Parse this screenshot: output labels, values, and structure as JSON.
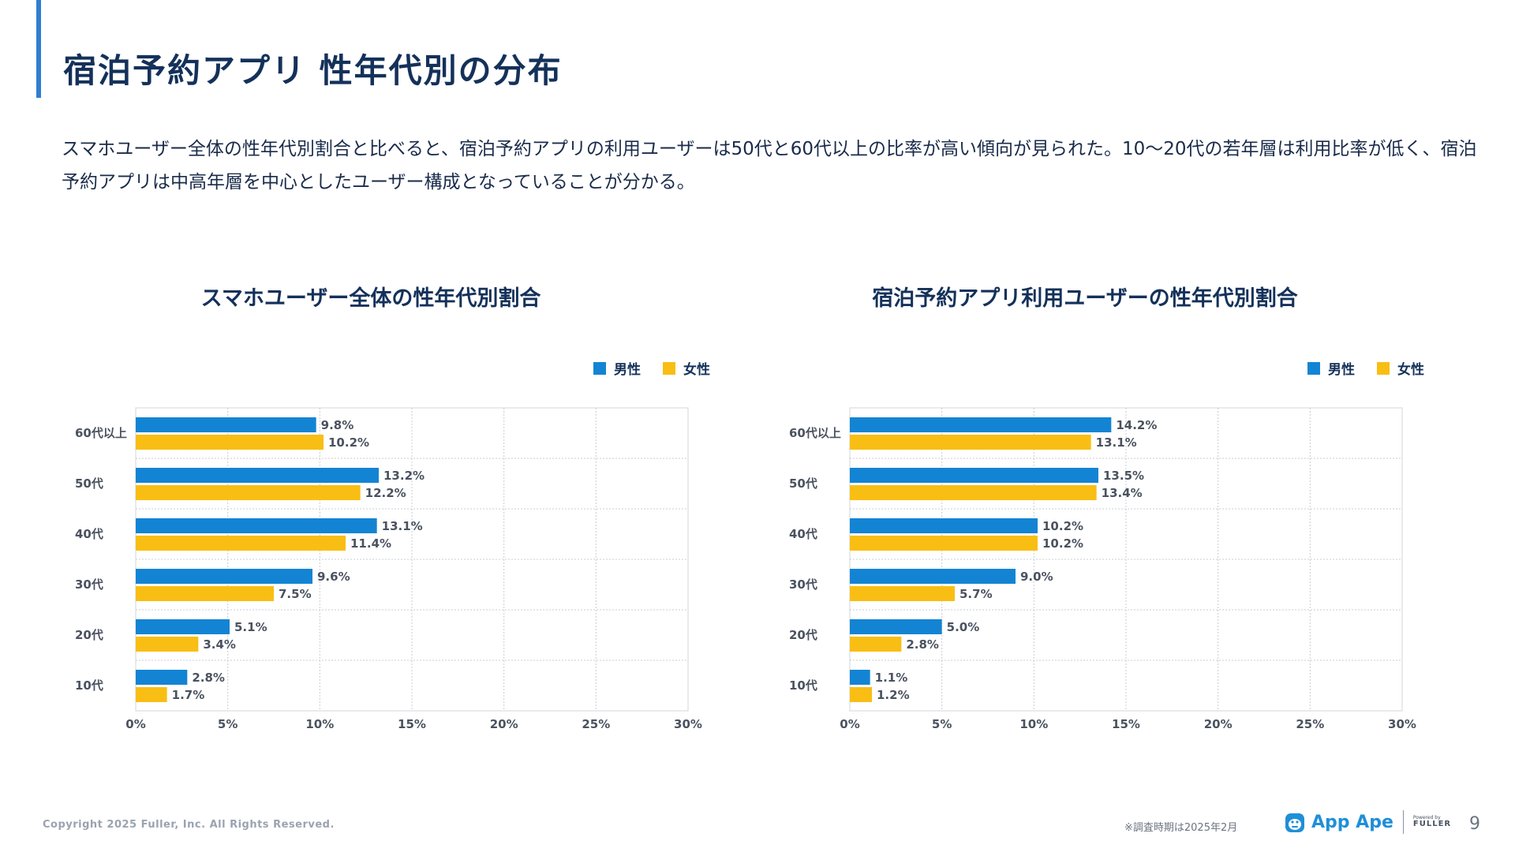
{
  "page": {
    "title": "宿泊予約アプリ 性年代別の分布",
    "description": "スマホユーザー全体の性年代別割合と比べると、宿泊予約アプリの利用ユーザーは50代と60代以上の比率が高い傾向が見られた。10〜20代の若年層は利用比率が低く、宿泊予約アプリは中高年層を中心としたユーザー構成となっていることが分かる。",
    "page_number": "9"
  },
  "legend": {
    "male": "男性",
    "female": "女性"
  },
  "colors": {
    "male": "#1384d3",
    "female": "#f9be14",
    "accent": "#2f7fd0",
    "title": "#14315a"
  },
  "footer": {
    "copyright": "Copyright 2025 Fuller, Inc. All Rights Reserved.",
    "note": "※調査時期は2025年2月",
    "logo_text": "App Ape",
    "powered_by": "Powered by",
    "fuller": "FULLER"
  },
  "chart_data": [
    {
      "type": "bar",
      "orientation": "horizontal",
      "title": "スマホユーザー全体の性年代別割合",
      "categories": [
        "60代以上",
        "50代",
        "40代",
        "30代",
        "20代",
        "10代"
      ],
      "series": [
        {
          "name": "男性",
          "values": [
            9.8,
            13.2,
            13.1,
            9.6,
            5.1,
            2.8
          ],
          "labels": [
            "9.8%",
            "13.2%",
            "13.1%",
            "9.6%",
            "5.1%",
            "2.8%"
          ]
        },
        {
          "name": "女性",
          "values": [
            10.2,
            12.2,
            11.4,
            7.5,
            3.4,
            1.7
          ],
          "labels": [
            "10.2%",
            "12.2%",
            "11.4%",
            "7.5%",
            "3.4%",
            "1.7%"
          ]
        }
      ],
      "xlim": [
        0,
        30
      ],
      "xticks": [
        "0%",
        "5%",
        "10%",
        "15%",
        "20%",
        "25%",
        "30%"
      ]
    },
    {
      "type": "bar",
      "orientation": "horizontal",
      "title": "宿泊予約アプリ利用ユーザーの性年代別割合",
      "categories": [
        "60代以上",
        "50代",
        "40代",
        "30代",
        "20代",
        "10代"
      ],
      "series": [
        {
          "name": "男性",
          "values": [
            14.2,
            13.5,
            10.2,
            9.0,
            5.0,
            1.1
          ],
          "labels": [
            "14.2%",
            "13.5%",
            "10.2%",
            "9.0%",
            "5.0%",
            "1.1%"
          ]
        },
        {
          "name": "女性",
          "values": [
            13.1,
            13.4,
            10.2,
            5.7,
            2.8,
            1.2
          ],
          "labels": [
            "13.1%",
            "13.4%",
            "10.2%",
            "5.7%",
            "2.8%",
            "1.2%"
          ]
        }
      ],
      "xlim": [
        0,
        30
      ],
      "xticks": [
        "0%",
        "5%",
        "10%",
        "15%",
        "20%",
        "25%",
        "30%"
      ]
    }
  ]
}
